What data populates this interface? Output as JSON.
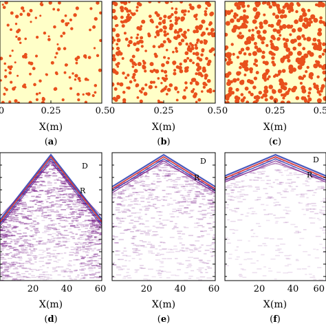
{
  "colors": {
    "sand": "#ffffc8",
    "particle": "#e8501c",
    "seismic_purple": "#7a1f8a",
    "seismic_blue": "#2a3cb0",
    "seismic_red": "#d02020"
  },
  "top_row": {
    "xlabel": "X(m)",
    "tick_labels": [
      "0",
      "0.25",
      "0.5"
    ],
    "panels": [
      {
        "label_open": "(",
        "letter": "a",
        "label_close": ")",
        "density": 0.09
      },
      {
        "label_open": "(",
        "letter": "b",
        "label_close": ")",
        "density": 0.3
      },
      {
        "label_open": "(",
        "letter": "c",
        "label_close": ")",
        "density": 0.45
      }
    ]
  },
  "bottom_row": {
    "xlabel": "X(m)",
    "tick_labels": [
      "20",
      "40",
      "60"
    ],
    "annotation_direct": "D",
    "annotation_reflected": "R",
    "panels": [
      {
        "label_open": "(",
        "letter": "d",
        "label_close": ")",
        "scatter_intensity": 1.0
      },
      {
        "label_open": "(",
        "letter": "e",
        "label_close": ")",
        "scatter_intensity": 0.55
      },
      {
        "label_open": "(",
        "letter": "f",
        "label_close": ")",
        "scatter_intensity": 0.25
      }
    ]
  }
}
